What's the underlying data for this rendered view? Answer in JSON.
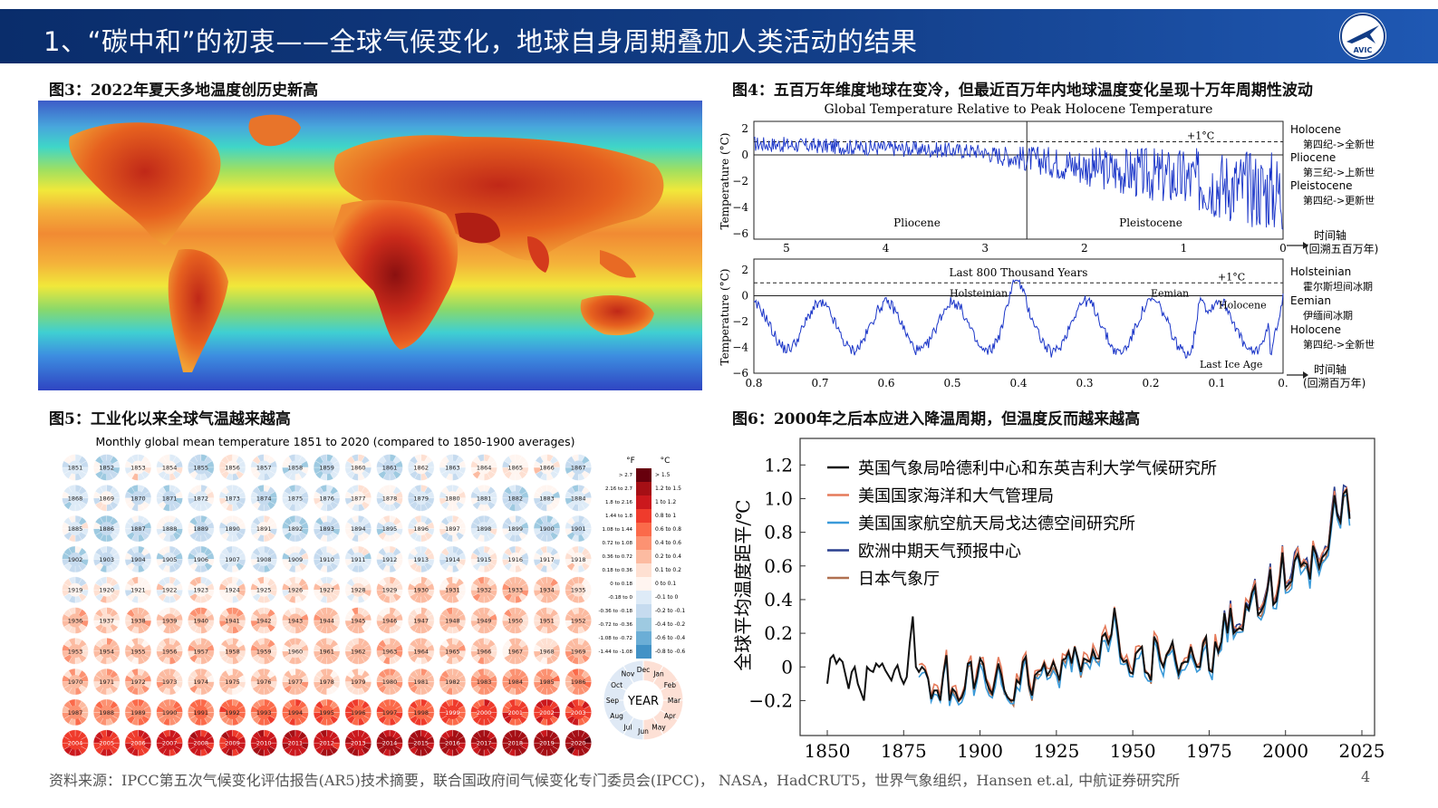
{
  "header": {
    "title": "1、“碳中和”的初衷——全球气候变化，地球自身周期叠加人类活动的结果",
    "logo_text": "AVIC",
    "logo_icon": "plane-logo-icon"
  },
  "figures": {
    "fig3": {
      "caption": "图3：2022年夏天多地温度创历史新高"
    },
    "fig4": {
      "caption": "图4：五百万年维度地球在变冷，但最近百万年内地球温度变化呈现十万年周期性波动",
      "title": "Global Temperature Relative to Peak Holocene Temperature",
      "ylabel": "Temperature (°C)",
      "top": {
        "yticks": [
          "2",
          "0",
          "−2",
          "−4",
          "−6"
        ],
        "xticks": [
          "5",
          "4",
          "3",
          "2",
          "1",
          "0"
        ],
        "ref_label": "+1°C",
        "region_left": "Pliocene",
        "region_right": "Pleistocene",
        "legend": [
          {
            "en": "Holocene",
            "zh": "第四纪->全新世"
          },
          {
            "en": "Pliocene",
            "zh": "第三纪->上新世"
          },
          {
            "en": "Pleistocene",
            "zh": "第四纪->更新世"
          }
        ],
        "axis_label": "时间轴",
        "axis_sub": "(回溯五百万年)"
      },
      "bottom": {
        "title": "Last 800 Thousand Years",
        "yticks": [
          "2",
          "0",
          "−2",
          "−4",
          "−6"
        ],
        "xticks": [
          "0.8",
          "0.7",
          "0.6",
          "0.5",
          "0.4",
          "0.3",
          "0.2",
          "0.1",
          "0."
        ],
        "ref_label": "+1°C",
        "annotations": [
          "Holsteinian",
          "Eemian",
          "Holocene",
          "Last Ice Age"
        ],
        "legend": [
          {
            "en": "Holsteinian",
            "zh": "霍尔斯坦间冰期"
          },
          {
            "en": "Eemian",
            "zh": "伊缅间冰期"
          },
          {
            "en": "Holocene",
            "zh": "第四纪->全新世"
          }
        ],
        "axis_label": "时间轴",
        "axis_sub": "(回溯百万年)"
      }
    },
    "fig5": {
      "caption": "图5：工业化以来全球气温越来越高",
      "title": "Monthly global mean temperature 1851 to 2020 (compared to 1850-1900 averages)",
      "years_start": 1851,
      "years_end": 2020,
      "columns": 17,
      "scale_headers": [
        "°F",
        "°C"
      ],
      "scale": [
        {
          "f": "> 2.7",
          "c": "> 1.5",
          "color": "#67000d"
        },
        {
          "f": "2.16 to 2.7",
          "c": "1.2 to 1.5",
          "color": "#a50f15"
        },
        {
          "f": "1.8 to 2.16",
          "c": "1 to 1.2",
          "color": "#cb181d"
        },
        {
          "f": "1.44 to 1.8",
          "c": "0.8 to 1",
          "color": "#ef3b2c"
        },
        {
          "f": "1.08 to 1.44",
          "c": "0.6 to 0.8",
          "color": "#fb6a4a"
        },
        {
          "f": "0.72 to 1.08",
          "c": "0.4 to 0.6",
          "color": "#fc9272"
        },
        {
          "f": "0.36 to 0.72",
          "c": "0.2 to 0.4",
          "color": "#fcbba1"
        },
        {
          "f": "0.18 to 0.36",
          "c": "0.1 to 0.2",
          "color": "#fee0d2"
        },
        {
          "f": "0 to 0.18",
          "c": "0 to 0.1",
          "color": "#fff5f0"
        },
        {
          "f": "-0.18 to 0",
          "c": "-0.1 to 0",
          "color": "#deebf7"
        },
        {
          "f": "-0.36 to -0.18",
          "c": "-0.2 to -0.1",
          "color": "#c6dbef"
        },
        {
          "f": "-0.72 to -0.36",
          "c": "-0.4 to -0.2",
          "color": "#9ecae1"
        },
        {
          "f": "-1.08 to -0.72",
          "c": "-0.6 to -0.4",
          "color": "#6baed6"
        },
        {
          "f": "-1.44 to -1.08",
          "c": "-0.8 to -0.6",
          "color": "#4292c6"
        }
      ],
      "legend_wheel": {
        "center": "YEAR",
        "months": [
          "Dec",
          "Jan",
          "Feb",
          "Mar",
          "Apr",
          "May",
          "Jun",
          "Jul",
          "Aug",
          "Sep",
          "Oct",
          "Nov"
        ]
      }
    },
    "fig6": {
      "caption": "图6：2000年之后本应进入降温周期，但温度反而越来越高",
      "ylabel": "全球平均温度距平/℃"
    }
  },
  "chart_data": {
    "type": "line",
    "title": "",
    "xlabel": "",
    "ylabel": "全球平均温度距平/℃",
    "xlim": [
      1850,
      2025
    ],
    "ylim": [
      -0.3,
      1.25
    ],
    "xticks": [
      1850,
      1875,
      1900,
      1925,
      1950,
      1975,
      2000,
      2025
    ],
    "yticks": [
      -0.2,
      0,
      0.2,
      0.4,
      0.6,
      0.8,
      1.0,
      1.2
    ],
    "ytick_labels": [
      "−0.2",
      "0",
      "0.2",
      "0.4",
      "0.6",
      "0.8",
      "1.0",
      "1.2"
    ],
    "legend_position": "top-left",
    "x_start": 1850,
    "base_values": [
      -0.1,
      0.05,
      0.07,
      0.02,
      0.05,
      0.03,
      -0.05,
      -0.13,
      -0.03,
      0.0,
      -0.1,
      -0.15,
      -0.2,
      0.0,
      -0.02,
      -0.03,
      0.02,
      0.0,
      0.02,
      -0.02,
      -0.05,
      -0.08,
      -0.02,
      0.01,
      -0.06,
      -0.1,
      -0.06,
      0.14,
      0.3,
      0.0,
      -0.03,
      0.0,
      -0.02,
      -0.07,
      -0.19,
      -0.14,
      -0.14,
      -0.2,
      -0.04,
      0.07,
      -0.2,
      -0.13,
      -0.15,
      -0.2,
      -0.18,
      -0.13,
      0.02,
      0.03,
      -0.13,
      -0.06,
      0.05,
      0.02,
      -0.08,
      -0.13,
      -0.16,
      -0.07,
      0.02,
      -0.05,
      -0.14,
      -0.18,
      -0.2,
      -0.2,
      -0.08,
      -0.1,
      0.03,
      0.06,
      -0.11,
      -0.17,
      -0.05,
      -0.03,
      -0.02,
      0.02,
      -0.05,
      -0.02,
      0.03,
      -0.02,
      -0.08,
      0.04,
      0.05,
      0.09,
      0.02,
      0.12,
      0.05,
      -0.03,
      0.05,
      0.04,
      0.03,
      0.1,
      0.05,
      0.05,
      0.18,
      0.2,
      0.14,
      0.19,
      0.35,
      0.22,
      0.06,
      0.03,
      0.04,
      -0.03,
      -0.04,
      0.08,
      0.1,
      0.12,
      -0.03,
      -0.04,
      -0.08,
      0.18,
      0.14,
      0.04,
      0.0,
      0.07,
      0.1,
      0.15,
      0.04,
      -0.04,
      0.02,
      0.03,
      0.03,
      0.12,
      0.05,
      0.0,
      0.0,
      0.14,
      0.18,
      -0.02,
      -0.03,
      0.15,
      0.09,
      0.15,
      0.32,
      0.2,
      0.35,
      0.2,
      0.22,
      0.23,
      0.22,
      0.37,
      0.34,
      0.44,
      0.48,
      0.31,
      0.33,
      0.37,
      0.45,
      0.58,
      0.37,
      0.39,
      0.5,
      0.68,
      0.47,
      0.49,
      0.51,
      0.63,
      0.67,
      0.6,
      0.62,
      0.61,
      0.52,
      0.72,
      0.67,
      0.59,
      0.65,
      0.67,
      0.7,
      0.86,
      1.02,
      0.9,
      0.86,
      1.03,
      1.05,
      0.88
    ],
    "series": [
      {
        "name": "英国气象局哈德利中心和东英吉利大学气候研究所",
        "color": "#111111",
        "start": 1850,
        "offset": 0.0
      },
      {
        "name": "美国国家海洋和大气管理局",
        "color": "#e57a5a",
        "start": 1880,
        "offset": 0.02
      },
      {
        "name": "美国国家航空航天局戈达德空间研究所",
        "color": "#3a9ad9",
        "start": 1880,
        "offset": -0.03
      },
      {
        "name": "欧洲中期天气预报中心",
        "color": "#2a3f8f",
        "start": 1979,
        "offset": 0.03
      },
      {
        "name": "日本气象厅",
        "color": "#b07050",
        "start": 1891,
        "offset": -0.01
      }
    ]
  },
  "footer": {
    "source": "资料来源：IPCC第五次气候变化评估报告(AR5)技术摘要，联合国政府间气候变化专门委员会(IPCC)， NASA，HadCRUT5，世界气象组织，Hansen et.al, 中航证券研究所",
    "page": "4"
  }
}
